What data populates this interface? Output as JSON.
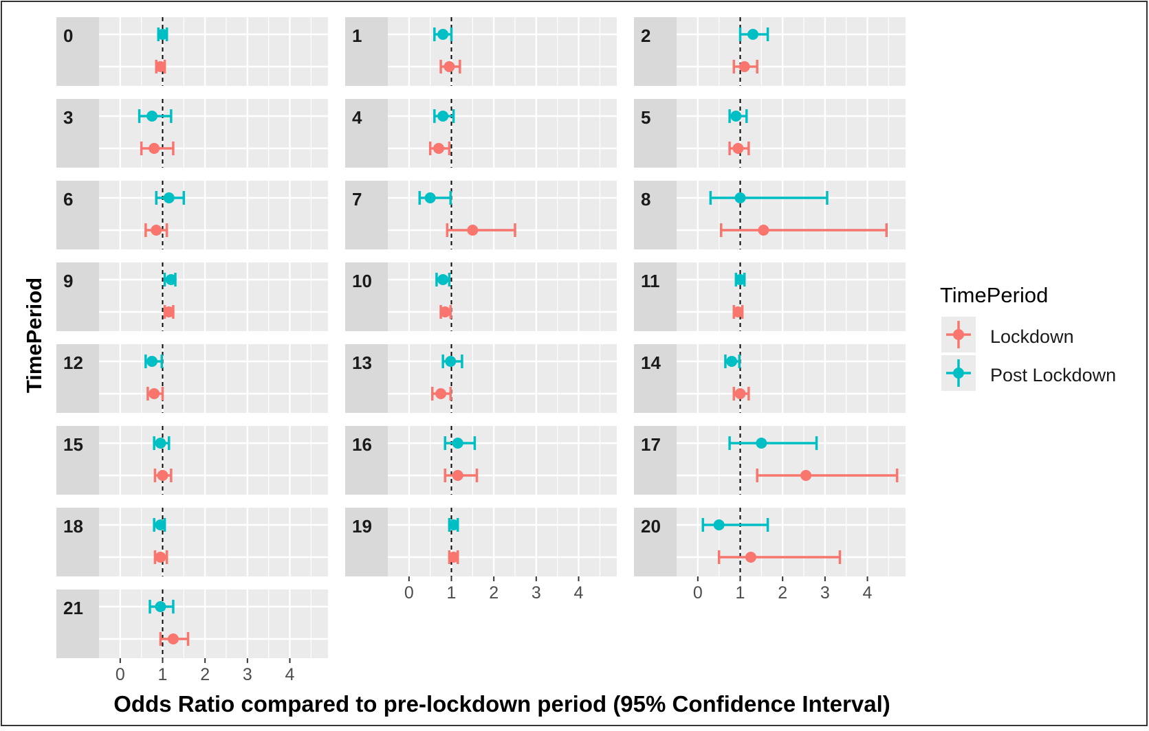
{
  "chart_data": {
    "type": "faceted-forest",
    "facet_column": [
      "0",
      "1",
      "2",
      "3",
      "4",
      "5",
      "6",
      "7",
      "8",
      "9",
      "10",
      "11",
      "12",
      "13",
      "14",
      "15",
      "16",
      "17",
      "18",
      "19",
      "20",
      "21"
    ],
    "ylabel": "TimePeriod",
    "xlabel": "Odds Ratio compared to pre-lockdown period (95% Confidence Interval)",
    "xlim": [
      -0.5,
      4.9
    ],
    "x_ticks": [
      0,
      1,
      2,
      3,
      4
    ],
    "reference_line": 1,
    "grid": true,
    "legend": {
      "title": "TimePeriod",
      "placement": "right",
      "entries": [
        "Lockdown",
        "Post Lockdown"
      ]
    },
    "series": [
      {
        "name": "Post Lockdown",
        "color": "#00BFC4"
      },
      {
        "name": "Lockdown",
        "color": "#F8766D"
      }
    ],
    "facets": [
      {
        "label": "0",
        "post_lockdown": {
          "est": 1.0,
          "lo": 0.9,
          "hi": 1.1
        },
        "lockdown": {
          "est": 0.95,
          "lo": 0.85,
          "hi": 1.05
        }
      },
      {
        "label": "1",
        "post_lockdown": {
          "est": 0.8,
          "lo": 0.6,
          "hi": 1.0
        },
        "lockdown": {
          "est": 0.95,
          "lo": 0.75,
          "hi": 1.2
        }
      },
      {
        "label": "2",
        "post_lockdown": {
          "est": 1.3,
          "lo": 1.0,
          "hi": 1.65
        },
        "lockdown": {
          "est": 1.1,
          "lo": 0.85,
          "hi": 1.4
        }
      },
      {
        "label": "3",
        "post_lockdown": {
          "est": 0.75,
          "lo": 0.45,
          "hi": 1.2
        },
        "lockdown": {
          "est": 0.8,
          "lo": 0.5,
          "hi": 1.25
        }
      },
      {
        "label": "4",
        "post_lockdown": {
          "est": 0.8,
          "lo": 0.6,
          "hi": 1.05
        },
        "lockdown": {
          "est": 0.7,
          "lo": 0.5,
          "hi": 0.95
        }
      },
      {
        "label": "5",
        "post_lockdown": {
          "est": 0.9,
          "lo": 0.75,
          "hi": 1.15
        },
        "lockdown": {
          "est": 0.95,
          "lo": 0.75,
          "hi": 1.2
        }
      },
      {
        "label": "6",
        "post_lockdown": {
          "est": 1.15,
          "lo": 0.85,
          "hi": 1.5
        },
        "lockdown": {
          "est": 0.85,
          "lo": 0.6,
          "hi": 1.1
        }
      },
      {
        "label": "7",
        "post_lockdown": {
          "est": 0.5,
          "lo": 0.25,
          "hi": 0.98
        },
        "lockdown": {
          "est": 1.5,
          "lo": 0.9,
          "hi": 2.5
        }
      },
      {
        "label": "8",
        "post_lockdown": {
          "est": 1.0,
          "lo": 0.3,
          "hi": 3.05
        },
        "lockdown": {
          "est": 1.55,
          "lo": 0.55,
          "hi": 4.45
        }
      },
      {
        "label": "9",
        "post_lockdown": {
          "est": 1.2,
          "lo": 1.05,
          "hi": 1.3
        },
        "lockdown": {
          "est": 1.15,
          "lo": 1.05,
          "hi": 1.25
        }
      },
      {
        "label": "10",
        "post_lockdown": {
          "est": 0.8,
          "lo": 0.65,
          "hi": 0.95
        },
        "lockdown": {
          "est": 0.85,
          "lo": 0.75,
          "hi": 0.98
        }
      },
      {
        "label": "11",
        "post_lockdown": {
          "est": 1.0,
          "lo": 0.9,
          "hi": 1.1
        },
        "lockdown": {
          "est": 0.95,
          "lo": 0.85,
          "hi": 1.05
        }
      },
      {
        "label": "12",
        "post_lockdown": {
          "est": 0.75,
          "lo": 0.6,
          "hi": 0.98
        },
        "lockdown": {
          "est": 0.8,
          "lo": 0.65,
          "hi": 1.0
        }
      },
      {
        "label": "13",
        "post_lockdown": {
          "est": 0.98,
          "lo": 0.8,
          "hi": 1.25
        },
        "lockdown": {
          "est": 0.75,
          "lo": 0.55,
          "hi": 0.98
        }
      },
      {
        "label": "14",
        "post_lockdown": {
          "est": 0.8,
          "lo": 0.65,
          "hi": 0.98
        },
        "lockdown": {
          "est": 1.0,
          "lo": 0.85,
          "hi": 1.2
        }
      },
      {
        "label": "15",
        "post_lockdown": {
          "est": 0.95,
          "lo": 0.8,
          "hi": 1.15
        },
        "lockdown": {
          "est": 1.0,
          "lo": 0.82,
          "hi": 1.2
        }
      },
      {
        "label": "16",
        "post_lockdown": {
          "est": 1.15,
          "lo": 0.85,
          "hi": 1.55
        },
        "lockdown": {
          "est": 1.15,
          "lo": 0.85,
          "hi": 1.6
        }
      },
      {
        "label": "17",
        "post_lockdown": {
          "est": 1.5,
          "lo": 0.75,
          "hi": 2.8
        },
        "lockdown": {
          "est": 2.55,
          "lo": 1.4,
          "hi": 4.7
        }
      },
      {
        "label": "18",
        "post_lockdown": {
          "est": 0.95,
          "lo": 0.8,
          "hi": 1.05
        },
        "lockdown": {
          "est": 0.95,
          "lo": 0.82,
          "hi": 1.1
        }
      },
      {
        "label": "19",
        "post_lockdown": {
          "est": 1.05,
          "lo": 0.95,
          "hi": 1.15
        },
        "lockdown": {
          "est": 1.05,
          "lo": 0.95,
          "hi": 1.15
        }
      },
      {
        "label": "20",
        "post_lockdown": {
          "est": 0.5,
          "lo": 0.12,
          "hi": 1.65
        },
        "lockdown": {
          "est": 1.25,
          "lo": 0.5,
          "hi": 3.35
        }
      },
      {
        "label": "21",
        "post_lockdown": {
          "est": 0.95,
          "lo": 0.7,
          "hi": 1.25
        },
        "lockdown": {
          "est": 1.25,
          "lo": 0.95,
          "hi": 1.6
        }
      }
    ]
  }
}
